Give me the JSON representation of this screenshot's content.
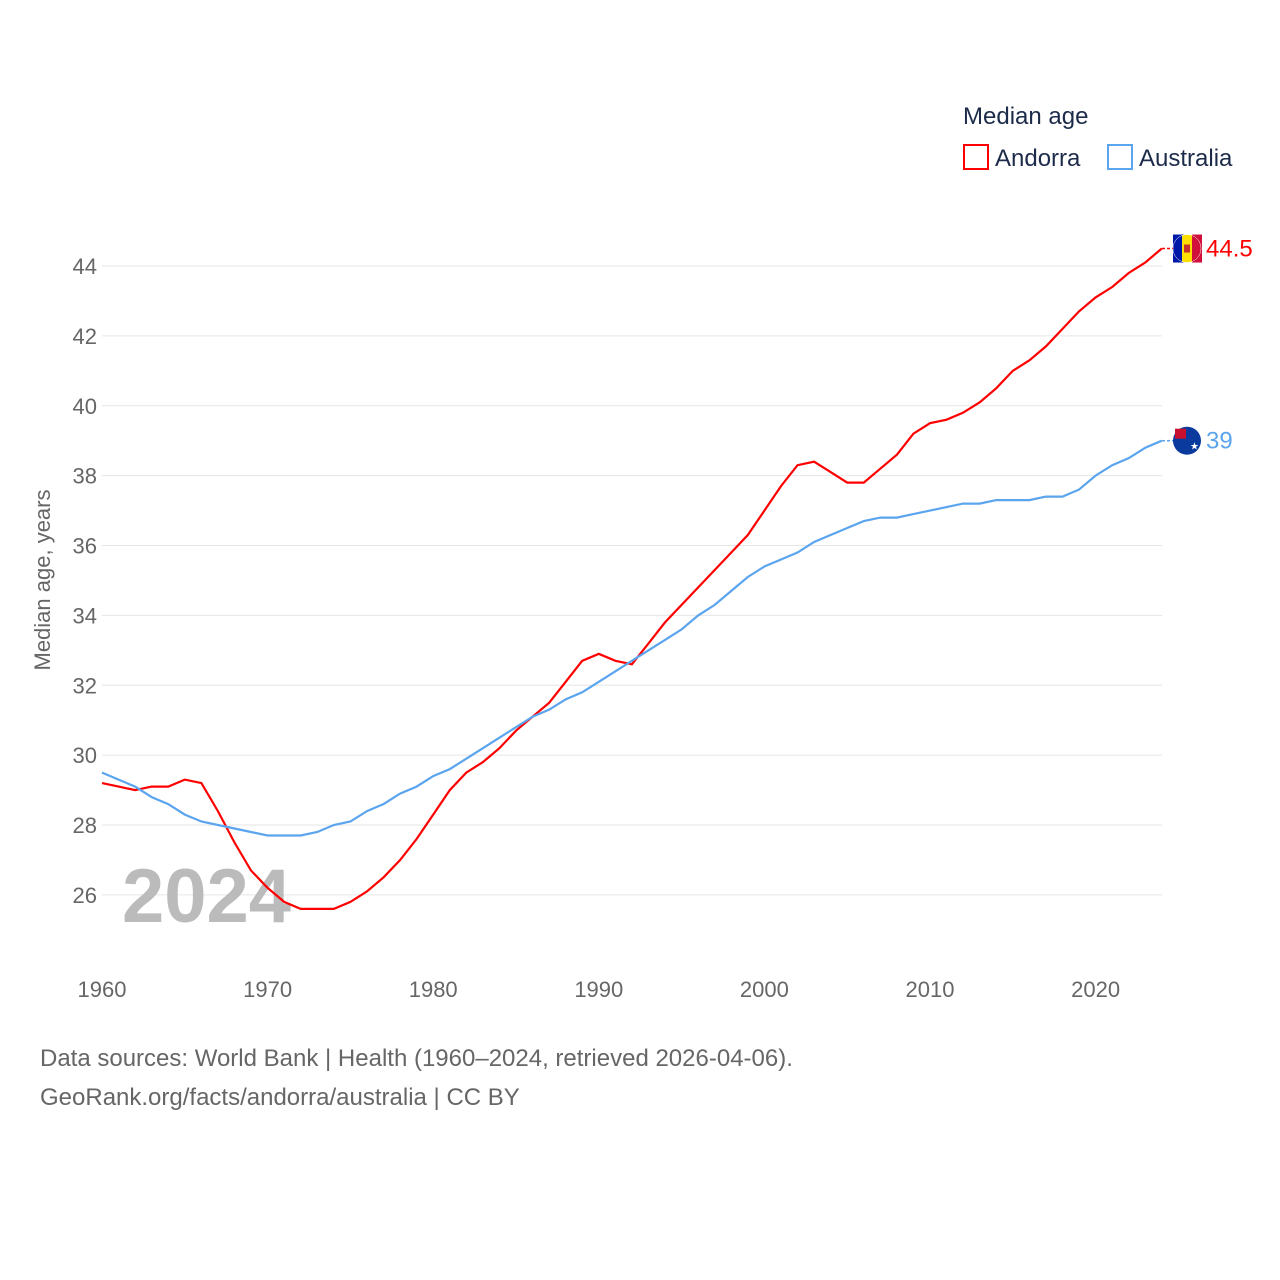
{
  "chart_data": {
    "type": "line",
    "title": "Median age",
    "xlabel": "",
    "ylabel": "Median age, years",
    "xlim": [
      1960,
      2024
    ],
    "ylim": [
      25,
      45
    ],
    "yticks": [
      26,
      28,
      30,
      32,
      34,
      36,
      38,
      40,
      42,
      44
    ],
    "xticks": [
      1960,
      1970,
      1980,
      1990,
      2000,
      2010,
      2020
    ],
    "grid": true,
    "legend_placement": "top-right",
    "watermark_year": "2024",
    "x_start": 1960,
    "series": [
      {
        "name": "Andorra",
        "color": "#ff0000",
        "end_label": "44.5",
        "values": [
          29.2,
          29.1,
          29.0,
          29.1,
          29.1,
          29.3,
          29.2,
          28.4,
          27.5,
          26.7,
          26.2,
          25.8,
          25.6,
          25.6,
          25.6,
          25.8,
          26.1,
          26.5,
          27.0,
          27.6,
          28.3,
          29.0,
          29.5,
          29.8,
          30.2,
          30.7,
          31.1,
          31.5,
          32.1,
          32.7,
          32.9,
          32.7,
          32.6,
          33.2,
          33.8,
          34.3,
          34.8,
          35.3,
          35.8,
          36.3,
          37.0,
          37.7,
          38.3,
          38.4,
          38.1,
          37.8,
          37.8,
          38.2,
          38.6,
          39.2,
          39.5,
          39.6,
          39.8,
          40.1,
          40.5,
          41.0,
          41.3,
          41.7,
          42.2,
          42.7,
          43.1,
          43.4,
          43.8,
          44.1,
          44.5
        ]
      },
      {
        "name": "Australia",
        "color": "#5ba4ee",
        "end_label": "39",
        "values": [
          29.5,
          29.3,
          29.1,
          28.8,
          28.6,
          28.3,
          28.1,
          28.0,
          27.9,
          27.8,
          27.7,
          27.7,
          27.7,
          27.8,
          28.0,
          28.1,
          28.4,
          28.6,
          28.9,
          29.1,
          29.4,
          29.6,
          29.9,
          30.2,
          30.5,
          30.8,
          31.1,
          31.3,
          31.6,
          31.8,
          32.1,
          32.4,
          32.7,
          33.0,
          33.3,
          33.6,
          34.0,
          34.3,
          34.7,
          35.1,
          35.4,
          35.6,
          35.8,
          36.1,
          36.3,
          36.5,
          36.7,
          36.8,
          36.8,
          36.9,
          37.0,
          37.1,
          37.2,
          37.2,
          37.3,
          37.3,
          37.3,
          37.4,
          37.4,
          37.6,
          38.0,
          38.3,
          38.5,
          38.8,
          39.0
        ]
      }
    ]
  },
  "source": {
    "line1": "Data sources: World Bank | Health (1960–2024, retrieved 2026-04-06).",
    "line2": "GeoRank.org/facts/andorra/australia | CC BY"
  }
}
